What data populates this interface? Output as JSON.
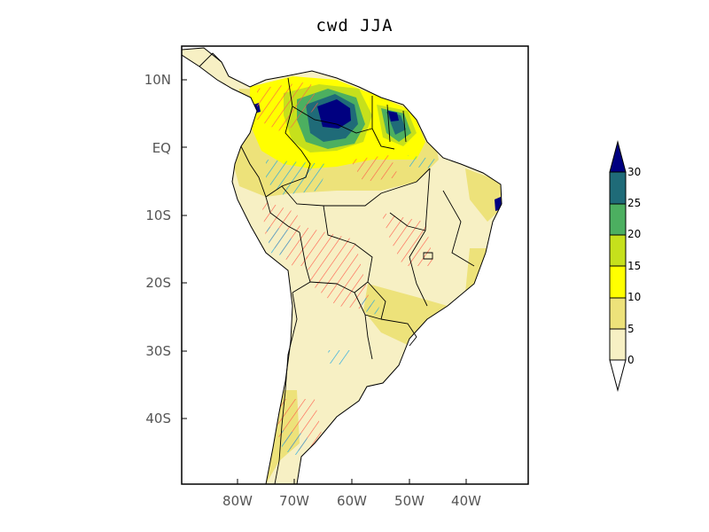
{
  "title": "cwd JJA",
  "lat_labels": [
    "10N",
    "EQ",
    "10S",
    "20S",
    "30S",
    "40S"
  ],
  "lon_labels": [
    "80W",
    "70W",
    "60W",
    "50W",
    "40W"
  ],
  "colorbar": {
    "levels": [
      "0",
      "5",
      "10",
      "15",
      "20",
      "25",
      "30"
    ],
    "colors": [
      "#f7f0c4",
      "#ede27a",
      "#ffff00",
      "#c6e01c",
      "#4caf60",
      "#1f6b78",
      "#000080"
    ],
    "under_color": "#ffffff",
    "over_color": "#000080"
  },
  "hatch_colors": {
    "positive": "#ff5a4a",
    "negative": "#1fa8e0"
  }
}
